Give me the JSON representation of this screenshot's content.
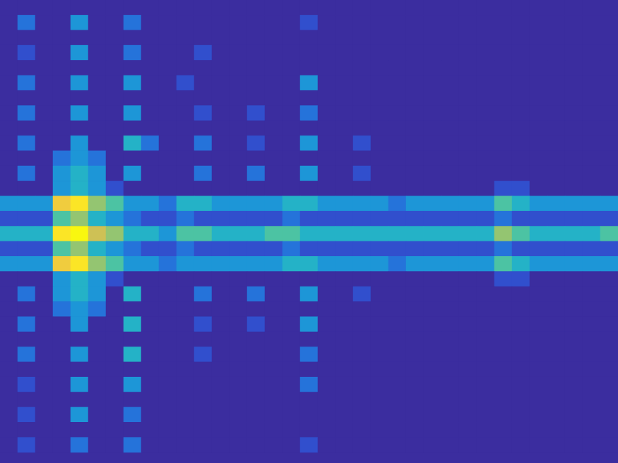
{
  "chart_data": {
    "type": "heatmap",
    "tick_labels": false,
    "color_range": [
      0,
      10
    ],
    "cells": [
      [
        0,
        0,
        0,
        0,
        0,
        0,
        0,
        0,
        0,
        0,
        0,
        0,
        0,
        0,
        0,
        0,
        0,
        0,
        0,
        0,
        0,
        0,
        0,
        0,
        0,
        0,
        0,
        0,
        0,
        0,
        0,
        0,
        0,
        0,
        0
      ],
      [
        0,
        2,
        0,
        0,
        3,
        0,
        0,
        2,
        0,
        0,
        0,
        0,
        0,
        0,
        0,
        0,
        0,
        1,
        0,
        0,
        0,
        0,
        0,
        0,
        0,
        0,
        0,
        0,
        0,
        0,
        0,
        0,
        0,
        0,
        0
      ],
      [
        0,
        0,
        0,
        0,
        0,
        0,
        0,
        0,
        0,
        0,
        0,
        0,
        0,
        0,
        0,
        0,
        0,
        0,
        0,
        0,
        0,
        0,
        0,
        0,
        0,
        0,
        0,
        0,
        0,
        0,
        0,
        0,
        0,
        0,
        0
      ],
      [
        0,
        1,
        0,
        0,
        3,
        0,
        0,
        2,
        0,
        0,
        0,
        1,
        0,
        0,
        0,
        0,
        0,
        0,
        0,
        0,
        0,
        0,
        0,
        0,
        0,
        0,
        0,
        0,
        0,
        0,
        0,
        0,
        0,
        0,
        0
      ],
      [
        0,
        0,
        0,
        0,
        0,
        0,
        0,
        0,
        0,
        0,
        0,
        0,
        0,
        0,
        0,
        0,
        0,
        0,
        0,
        0,
        0,
        0,
        0,
        0,
        0,
        0,
        0,
        0,
        0,
        0,
        0,
        0,
        0,
        0,
        0
      ],
      [
        0,
        2,
        0,
        0,
        3,
        0,
        0,
        3,
        0,
        0,
        1,
        0,
        0,
        0,
        0,
        0,
        0,
        3,
        0,
        0,
        0,
        0,
        0,
        0,
        0,
        0,
        0,
        0,
        0,
        0,
        0,
        0,
        0,
        0,
        0
      ],
      [
        0,
        0,
        0,
        0,
        0,
        0,
        0,
        0,
        0,
        0,
        0,
        0,
        0,
        0,
        0,
        0,
        0,
        0,
        0,
        0,
        0,
        0,
        0,
        0,
        0,
        0,
        0,
        0,
        0,
        0,
        0,
        0,
        0,
        0,
        0
      ],
      [
        0,
        2,
        0,
        0,
        3,
        0,
        0,
        3,
        0,
        0,
        0,
        1,
        0,
        0,
        1,
        0,
        0,
        2,
        0,
        0,
        0,
        0,
        0,
        0,
        0,
        0,
        0,
        0,
        0,
        0,
        0,
        0,
        0,
        0,
        0
      ],
      [
        0,
        0,
        0,
        0,
        0,
        0,
        0,
        0,
        0,
        0,
        0,
        0,
        0,
        0,
        0,
        0,
        0,
        0,
        0,
        0,
        0,
        0,
        0,
        0,
        0,
        0,
        0,
        0,
        0,
        0,
        0,
        0,
        0,
        0,
        0
      ],
      [
        0,
        2,
        0,
        0,
        3,
        0,
        0,
        4,
        2,
        0,
        0,
        2,
        0,
        0,
        1,
        0,
        0,
        3,
        0,
        0,
        1,
        0,
        0,
        0,
        0,
        0,
        0,
        0,
        0,
        0,
        0,
        0,
        0,
        0,
        0
      ],
      [
        0,
        0,
        0,
        2,
        3,
        2,
        0,
        0,
        0,
        0,
        0,
        0,
        0,
        0,
        0,
        0,
        0,
        0,
        0,
        0,
        0,
        0,
        0,
        0,
        0,
        0,
        0,
        0,
        0,
        0,
        0,
        0,
        0,
        0,
        0
      ],
      [
        0,
        2,
        0,
        3,
        4,
        3,
        0,
        3,
        0,
        0,
        0,
        2,
        0,
        0,
        2,
        0,
        0,
        3,
        0,
        0,
        1,
        0,
        0,
        0,
        0,
        0,
        0,
        0,
        0,
        0,
        0,
        0,
        0,
        0,
        0
      ],
      [
        0,
        0,
        0,
        3,
        4,
        3,
        1,
        0,
        0,
        0,
        0,
        0,
        0,
        0,
        0,
        0,
        0,
        0,
        0,
        0,
        0,
        0,
        0,
        0,
        0,
        0,
        0,
        0,
        1,
        1,
        0,
        0,
        0,
        0,
        0
      ],
      [
        3,
        3,
        3,
        8,
        9,
        6,
        5,
        3,
        3,
        2,
        4,
        4,
        3,
        3,
        3,
        3,
        4,
        4,
        3,
        3,
        3,
        3,
        2,
        3,
        3,
        3,
        3,
        3,
        5,
        4,
        3,
        3,
        3,
        3,
        3
      ],
      [
        1,
        1,
        1,
        5,
        6,
        4,
        3,
        2,
        1,
        1,
        2,
        1,
        1,
        1,
        1,
        1,
        2,
        1,
        1,
        1,
        1,
        1,
        1,
        1,
        1,
        1,
        1,
        1,
        2,
        1,
        1,
        1,
        1,
        1,
        1
      ],
      [
        4,
        4,
        4,
        9,
        10,
        7,
        6,
        4,
        4,
        3,
        5,
        5,
        4,
        4,
        4,
        5,
        5,
        4,
        4,
        4,
        4,
        4,
        4,
        4,
        4,
        4,
        4,
        4,
        6,
        5,
        4,
        4,
        4,
        4,
        5
      ],
      [
        1,
        1,
        1,
        5,
        6,
        4,
        3,
        2,
        1,
        1,
        2,
        1,
        1,
        1,
        1,
        1,
        2,
        1,
        1,
        1,
        1,
        1,
        1,
        1,
        1,
        1,
        1,
        1,
        2,
        1,
        1,
        1,
        1,
        1,
        1
      ],
      [
        3,
        3,
        3,
        8,
        9,
        6,
        5,
        3,
        3,
        2,
        3,
        3,
        3,
        3,
        3,
        3,
        4,
        4,
        3,
        3,
        3,
        3,
        2,
        3,
        3,
        3,
        3,
        3,
        5,
        4,
        3,
        3,
        3,
        3,
        3
      ],
      [
        0,
        0,
        0,
        3,
        4,
        3,
        1,
        0,
        0,
        0,
        0,
        0,
        0,
        0,
        0,
        0,
        0,
        0,
        0,
        0,
        0,
        0,
        0,
        0,
        0,
        0,
        0,
        0,
        1,
        1,
        0,
        0,
        0,
        0,
        0
      ],
      [
        0,
        2,
        0,
        3,
        4,
        3,
        0,
        4,
        0,
        0,
        0,
        2,
        0,
        0,
        2,
        0,
        0,
        3,
        0,
        0,
        1,
        0,
        0,
        0,
        0,
        0,
        0,
        0,
        0,
        0,
        0,
        0,
        0,
        0,
        0
      ],
      [
        0,
        0,
        0,
        2,
        3,
        2,
        0,
        0,
        0,
        0,
        0,
        0,
        0,
        0,
        0,
        0,
        0,
        0,
        0,
        0,
        0,
        0,
        0,
        0,
        0,
        0,
        0,
        0,
        0,
        0,
        0,
        0,
        0,
        0,
        0
      ],
      [
        0,
        2,
        0,
        0,
        3,
        0,
        0,
        4,
        0,
        0,
        0,
        1,
        0,
        0,
        1,
        0,
        0,
        3,
        0,
        0,
        0,
        0,
        0,
        0,
        0,
        0,
        0,
        0,
        0,
        0,
        0,
        0,
        0,
        0,
        0
      ],
      [
        0,
        0,
        0,
        0,
        0,
        0,
        0,
        0,
        0,
        0,
        0,
        0,
        0,
        0,
        0,
        0,
        0,
        0,
        0,
        0,
        0,
        0,
        0,
        0,
        0,
        0,
        0,
        0,
        0,
        0,
        0,
        0,
        0,
        0,
        0
      ],
      [
        0,
        2,
        0,
        0,
        3,
        0,
        0,
        4,
        0,
        0,
        0,
        1,
        0,
        0,
        0,
        0,
        0,
        2,
        0,
        0,
        0,
        0,
        0,
        0,
        0,
        0,
        0,
        0,
        0,
        0,
        0,
        0,
        0,
        0,
        0
      ],
      [
        0,
        0,
        0,
        0,
        0,
        0,
        0,
        0,
        0,
        0,
        0,
        0,
        0,
        0,
        0,
        0,
        0,
        0,
        0,
        0,
        0,
        0,
        0,
        0,
        0,
        0,
        0,
        0,
        0,
        0,
        0,
        0,
        0,
        0,
        0
      ],
      [
        0,
        1,
        0,
        0,
        3,
        0,
        0,
        3,
        0,
        0,
        0,
        0,
        0,
        0,
        0,
        0,
        0,
        2,
        0,
        0,
        0,
        0,
        0,
        0,
        0,
        0,
        0,
        0,
        0,
        0,
        0,
        0,
        0,
        0,
        0
      ],
      [
        0,
        0,
        0,
        0,
        0,
        0,
        0,
        0,
        0,
        0,
        0,
        0,
        0,
        0,
        0,
        0,
        0,
        0,
        0,
        0,
        0,
        0,
        0,
        0,
        0,
        0,
        0,
        0,
        0,
        0,
        0,
        0,
        0,
        0,
        0
      ],
      [
        0,
        1,
        0,
        0,
        3,
        0,
        0,
        2,
        0,
        0,
        0,
        0,
        0,
        0,
        0,
        0,
        0,
        0,
        0,
        0,
        0,
        0,
        0,
        0,
        0,
        0,
        0,
        0,
        0,
        0,
        0,
        0,
        0,
        0,
        0
      ],
      [
        0,
        0,
        0,
        0,
        0,
        0,
        0,
        0,
        0,
        0,
        0,
        0,
        0,
        0,
        0,
        0,
        0,
        0,
        0,
        0,
        0,
        0,
        0,
        0,
        0,
        0,
        0,
        0,
        0,
        0,
        0,
        0,
        0,
        0,
        0
      ],
      [
        0,
        1,
        0,
        0,
        2,
        0,
        0,
        2,
        0,
        0,
        0,
        0,
        0,
        0,
        0,
        0,
        0,
        1,
        0,
        0,
        0,
        0,
        0,
        0,
        0,
        0,
        0,
        0,
        0,
        0,
        0,
        0,
        0,
        0,
        0
      ]
    ]
  }
}
